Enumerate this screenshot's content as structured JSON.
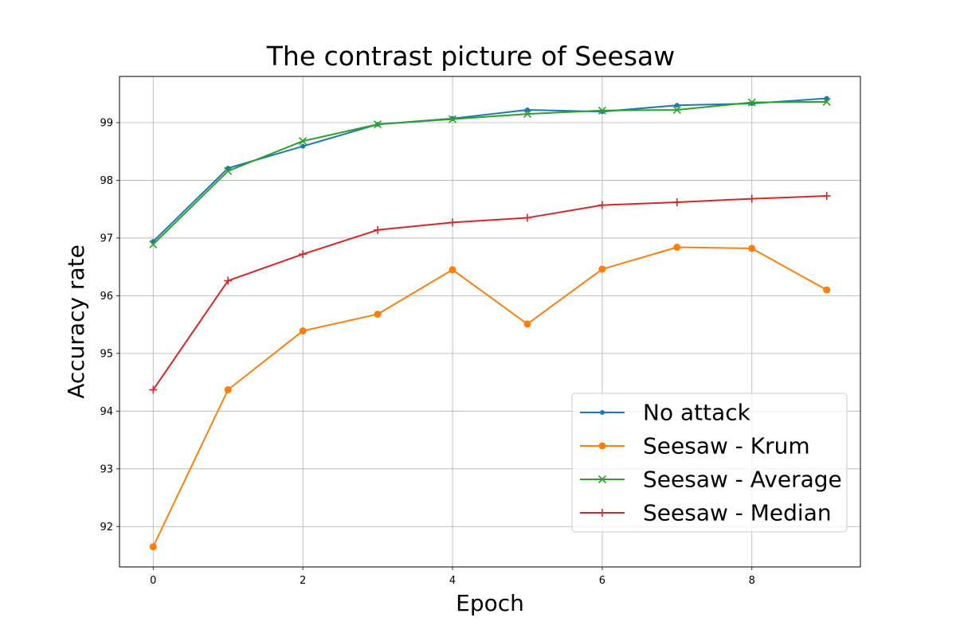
{
  "chart_data": {
    "type": "line",
    "title": "The contrast picture of Seesaw",
    "xlabel": "Epoch",
    "ylabel": "Accuracy rate",
    "xlim": [
      -0.45,
      9.45
    ],
    "ylim": [
      91.3,
      99.8
    ],
    "xticks": [
      "0",
      "2",
      "4",
      "6",
      "8"
    ],
    "yticks": [
      "92",
      "93",
      "94",
      "95",
      "96",
      "97",
      "98",
      "99"
    ],
    "grid": true,
    "legend_position": "lower-right",
    "x": [
      0,
      1,
      2,
      3,
      4,
      5,
      6,
      7,
      8,
      9
    ],
    "series": [
      {
        "name": "No attack",
        "color": "#1f77b4",
        "marker": "dot",
        "values": [
          96.94,
          98.21,
          98.59,
          98.97,
          99.07,
          99.22,
          99.19,
          99.3,
          99.33,
          99.42
        ]
      },
      {
        "name": "Seesaw - Krum",
        "color": "#ff7f0e",
        "marker": "circle",
        "values": [
          91.65,
          94.37,
          95.39,
          95.68,
          96.45,
          95.51,
          96.46,
          96.84,
          96.82,
          96.1
        ]
      },
      {
        "name": "Seesaw - Average",
        "color": "#2ca02c",
        "marker": "x",
        "values": [
          96.89,
          98.16,
          98.68,
          98.97,
          99.06,
          99.15,
          99.21,
          99.22,
          99.35,
          99.36
        ]
      },
      {
        "name": "Seesaw - Median",
        "color": "#d62728",
        "marker": "plus",
        "values": [
          94.37,
          96.26,
          96.72,
          97.14,
          97.27,
          97.35,
          97.57,
          97.62,
          97.68,
          97.73
        ]
      }
    ]
  }
}
